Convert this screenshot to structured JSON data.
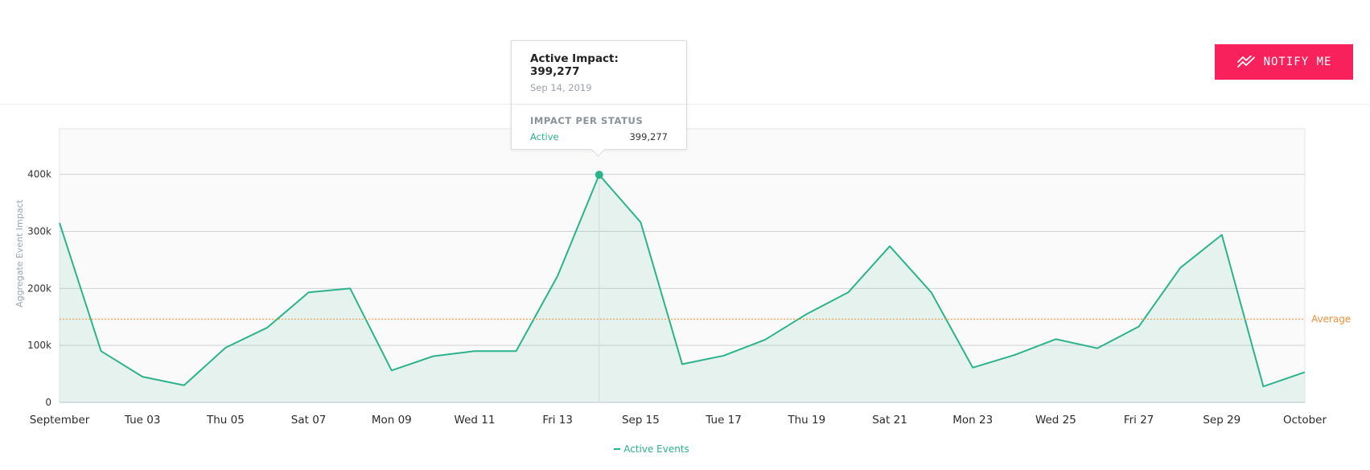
{
  "header": {
    "notify_label": "NOTIFY ME"
  },
  "chart_data": {
    "type": "area",
    "x": [
      "2019-09-01",
      "2019-09-02",
      "2019-09-03",
      "2019-09-04",
      "2019-09-05",
      "2019-09-06",
      "2019-09-07",
      "2019-09-08",
      "2019-09-09",
      "2019-09-10",
      "2019-09-11",
      "2019-09-12",
      "2019-09-13",
      "2019-09-14",
      "2019-09-15",
      "2019-09-16",
      "2019-09-17",
      "2019-09-18",
      "2019-09-19",
      "2019-09-20",
      "2019-09-21",
      "2019-09-22",
      "2019-09-23",
      "2019-09-24",
      "2019-09-25",
      "2019-09-26",
      "2019-09-27",
      "2019-09-28",
      "2019-09-29",
      "2019-09-30",
      "2019-10-01"
    ],
    "x_tick_labels": [
      "September",
      "Tue 03",
      "Thu 05",
      "Sat 07",
      "Mon 09",
      "Wed 11",
      "Fri 13",
      "Sep 15",
      "Tue 17",
      "Thu 19",
      "Sat 21",
      "Mon 23",
      "Wed 25",
      "Fri 27",
      "Sep 29",
      "October"
    ],
    "series": [
      {
        "name": "Active Events",
        "values": [
          315000,
          90000,
          45000,
          30000,
          96000,
          131000,
          193000,
          200000,
          56000,
          81000,
          90000,
          90000,
          222000,
          399277,
          316000,
          67000,
          82000,
          110000,
          155000,
          193000,
          274000,
          193000,
          61000,
          83000,
          111000,
          95000,
          133000,
          236000,
          294000,
          28000,
          53000
        ],
        "color": "#2db38c"
      }
    ],
    "average": {
      "label": "Average",
      "value": 146000,
      "color": "#f0903a"
    },
    "ylabel": "Aggregate Event Impact",
    "yticks": [
      0,
      100000,
      200000,
      300000,
      400000
    ],
    "ytick_labels": [
      "0",
      "100k",
      "200k",
      "300k",
      "400k"
    ],
    "ylim": [
      0,
      480000
    ],
    "grid": true,
    "legend_position": "bottom-center"
  },
  "tooltip": {
    "title": "Active Impact: 399,277",
    "date": "Sep 14, 2019",
    "section": "IMPACT PER STATUS",
    "status": "Active",
    "value": "399,277",
    "index": 13
  }
}
